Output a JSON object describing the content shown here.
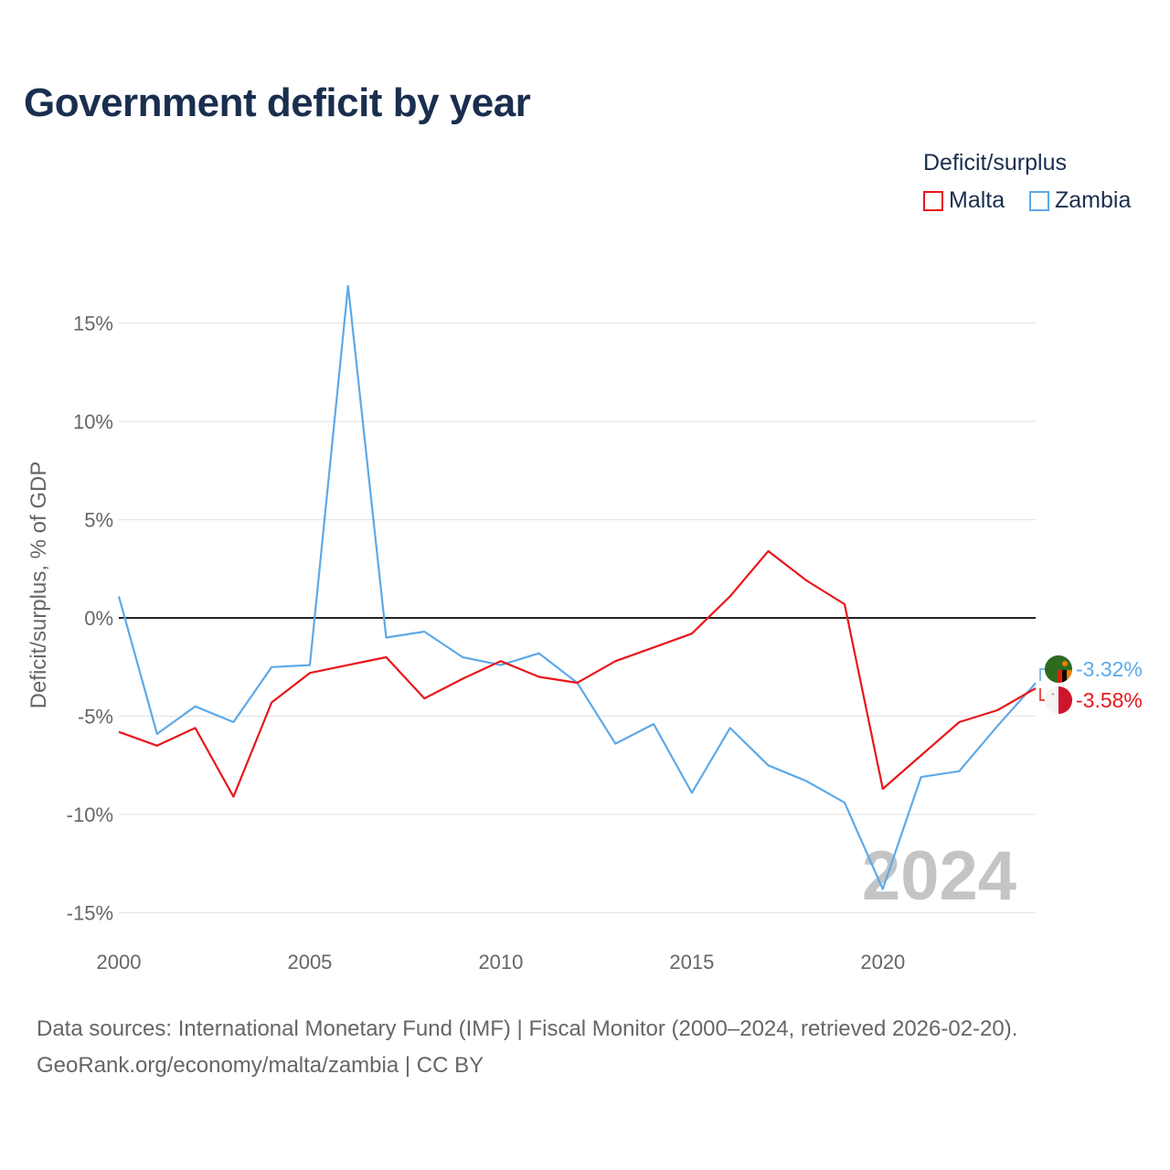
{
  "title": "Government deficit by year",
  "legend": {
    "title": "Deficit/surplus",
    "items": [
      {
        "name": "Malta",
        "color": "#e8161b"
      },
      {
        "name": "Zambia",
        "color": "#5da9e8"
      }
    ]
  },
  "watermark_year": "2024",
  "source": {
    "line1": "Data sources: International Monetary Fund (IMF) | Fiscal Monitor (2000–2024, retrieved 2026-02-20).",
    "line2": "GeoRank.org/economy/malta/zambia | CC BY"
  },
  "chart_data": {
    "type": "line",
    "title": "Government deficit by year",
    "xlabel": "",
    "ylabel": "Deficit/surplus, % of GDP",
    "xlim": [
      2000,
      2024
    ],
    "ylim": [
      -15,
      17
    ],
    "x_ticks": [
      2000,
      2005,
      2010,
      2015,
      2020
    ],
    "y_ticks": [
      15,
      10,
      5,
      0,
      -5,
      -10,
      -15
    ],
    "y_tick_labels": [
      "15%",
      "10%",
      "5%",
      "0%",
      "-5%",
      "-10%",
      "-15%"
    ],
    "grid": true,
    "legend_position": "top-right",
    "x": [
      2000,
      2001,
      2002,
      2003,
      2004,
      2005,
      2006,
      2007,
      2008,
      2009,
      2010,
      2011,
      2012,
      2013,
      2014,
      2015,
      2016,
      2017,
      2018,
      2019,
      2020,
      2021,
      2022,
      2023,
      2024
    ],
    "series": [
      {
        "name": "Malta",
        "color": "#e8161b",
        "values": [
          -5.8,
          -6.5,
          -5.6,
          -9.1,
          -4.3,
          -2.8,
          -2.4,
          -2.0,
          -4.1,
          -3.1,
          -2.2,
          -3.0,
          -3.3,
          -2.2,
          -1.5,
          -0.8,
          1.1,
          3.4,
          1.9,
          0.7,
          -8.7,
          -7.0,
          -5.3,
          -4.7,
          -3.58
        ],
        "end_label": "-3.58%"
      },
      {
        "name": "Zambia",
        "color": "#5da9e8",
        "values": [
          1.1,
          -5.9,
          -4.5,
          -5.3,
          -2.5,
          -2.4,
          16.9,
          -1.0,
          -0.7,
          -2.0,
          -2.4,
          -1.8,
          -3.3,
          -6.4,
          -5.4,
          -8.9,
          -5.6,
          -7.5,
          -8.3,
          -9.4,
          -13.8,
          -8.1,
          -7.8,
          -5.5,
          -3.32
        ],
        "end_label": "-3.32%"
      }
    ]
  }
}
